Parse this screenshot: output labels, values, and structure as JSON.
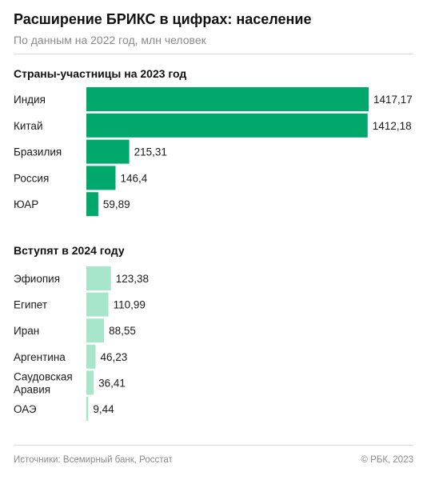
{
  "header": {
    "title": "Расширение БРИКС в цифрах: население",
    "subtitle": "По данным на 2022 год, млн человек"
  },
  "chart_data": [
    {
      "type": "bar",
      "orientation": "horizontal",
      "title": "Страны-участницы на 2023 год",
      "categories": [
        "Индия",
        "Китай",
        "Бразилия",
        "Россия",
        "ЮАР"
      ],
      "values": [
        1417.17,
        1412.18,
        215.31,
        146.4,
        59.89
      ],
      "value_labels": [
        "1417,17",
        "1412,18",
        "215,31",
        "146,4",
        "59,89"
      ],
      "color": "#00a86b"
    },
    {
      "type": "bar",
      "orientation": "horizontal",
      "title": "Вступят в 2024 году",
      "categories": [
        [
          "Эфиопия"
        ],
        [
          "Египет"
        ],
        [
          "Иран"
        ],
        [
          "Аргентина"
        ],
        [
          "Саудовская",
          "Аравия"
        ],
        [
          "ОАЭ"
        ]
      ],
      "values": [
        123.38,
        110.99,
        88.55,
        46.23,
        36.41,
        9.44
      ],
      "value_labels": [
        "123,38",
        "110,99",
        "88,55",
        "46,23",
        "36,41",
        "9,44"
      ],
      "color": "#a8e6cc"
    }
  ],
  "footer": {
    "source": "Источники: Всемирный банк, Росстат",
    "copyright": "© РБК, 2023"
  }
}
